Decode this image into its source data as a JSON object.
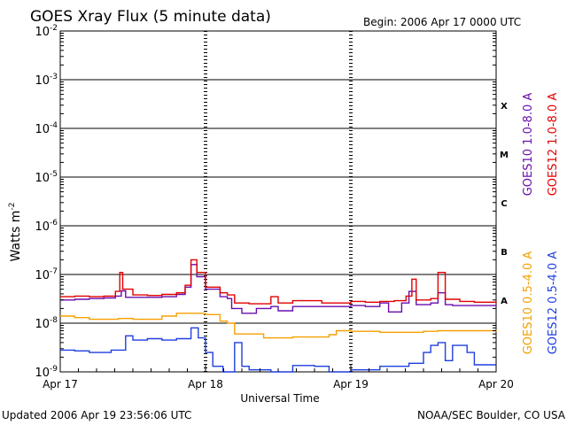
{
  "chart_data": {
    "type": "line",
    "title": "GOES Xray Flux (5 minute data)",
    "begin_label": "Begin:  2006 Apr 17 0000 UTC",
    "ylabel": "Watts m",
    "ylabel_sup": "-2",
    "xlabel": "Universal Time",
    "y_scale": "log",
    "ylim": [
      1e-09,
      0.01
    ],
    "y_ticks": [
      {
        "base": "10",
        "exp": "-2",
        "value": 0.01
      },
      {
        "base": "10",
        "exp": "-3",
        "value": 0.001
      },
      {
        "base": "10",
        "exp": "-4",
        "value": 0.0001
      },
      {
        "base": "10",
        "exp": "-5",
        "value": 1e-05
      },
      {
        "base": "10",
        "exp": "-6",
        "value": 1e-06
      },
      {
        "base": "10",
        "exp": "-7",
        "value": 1e-07
      },
      {
        "base": "10",
        "exp": "-8",
        "value": 1e-08
      },
      {
        "base": "10",
        "exp": "-9",
        "value": 1e-09
      }
    ],
    "x_unit": "days from 2006 Apr 17 0000 UTC",
    "xlim": [
      0,
      3
    ],
    "x_ticks": [
      {
        "label": "Apr 17",
        "value": 0
      },
      {
        "label": "Apr 18",
        "value": 1
      },
      {
        "label": "Apr 19",
        "value": 2
      },
      {
        "label": "Apr 20",
        "value": 3
      }
    ],
    "flare_classes": [
      {
        "label": "X",
        "value": 0.0003
      },
      {
        "label": "M",
        "value": 3e-05
      },
      {
        "label": "C",
        "value": 3e-06
      },
      {
        "label": "B",
        "value": 3e-07
      },
      {
        "label": "A",
        "value": 3e-08
      }
    ],
    "grid_lines_y": [
      0.001,
      0.0001,
      1e-05,
      1e-06,
      1e-07,
      1e-08
    ],
    "series": [
      {
        "name": "GOES10 1.0-8.0 A",
        "color": "#6a0dad",
        "group": "long",
        "points": [
          [
            0,
            3e-08
          ],
          [
            0.1,
            3.1e-08
          ],
          [
            0.2,
            3.2e-08
          ],
          [
            0.3,
            3.3e-08
          ],
          [
            0.38,
            3.6e-08
          ],
          [
            0.42,
            4.6e-08
          ],
          [
            0.45,
            3.4e-08
          ],
          [
            0.55,
            3.4e-08
          ],
          [
            0.7,
            3.5e-08
          ],
          [
            0.8,
            3.9e-08
          ],
          [
            0.86,
            5.5e-08
          ],
          [
            0.9,
            1.6e-07
          ],
          [
            0.94,
            9e-08
          ],
          [
            1.0,
            5e-08
          ],
          [
            1.1,
            3.5e-08
          ],
          [
            1.15,
            3.2e-08
          ],
          [
            1.18,
            2e-08
          ],
          [
            1.25,
            1.6e-08
          ],
          [
            1.35,
            2e-08
          ],
          [
            1.45,
            2.2e-08
          ],
          [
            1.5,
            1.8e-08
          ],
          [
            1.6,
            2.2e-08
          ],
          [
            1.8,
            2.2e-08
          ],
          [
            2.0,
            2.3e-08
          ],
          [
            2.1,
            2.2e-08
          ],
          [
            2.2,
            2.6e-08
          ],
          [
            2.26,
            1.7e-08
          ],
          [
            2.35,
            2.6e-08
          ],
          [
            2.4,
            4.5e-08
          ],
          [
            2.45,
            2.4e-08
          ],
          [
            2.55,
            2.6e-08
          ],
          [
            2.6,
            4.2e-08
          ],
          [
            2.65,
            2.4e-08
          ],
          [
            2.7,
            2.3e-08
          ],
          [
            2.8,
            2.3e-08
          ],
          [
            3.0,
            2.4e-08
          ]
        ]
      },
      {
        "name": "GOES12 1.0-8.0 A",
        "color": "#e00000",
        "group": "long",
        "points": [
          [
            0,
            3.5e-08
          ],
          [
            0.1,
            3.6e-08
          ],
          [
            0.2,
            3.5e-08
          ],
          [
            0.3,
            3.6e-08
          ],
          [
            0.38,
            4.5e-08
          ],
          [
            0.41,
            1.1e-07
          ],
          [
            0.43,
            5e-08
          ],
          [
            0.5,
            3.8e-08
          ],
          [
            0.6,
            3.7e-08
          ],
          [
            0.7,
            3.9e-08
          ],
          [
            0.8,
            4.2e-08
          ],
          [
            0.86,
            6e-08
          ],
          [
            0.9,
            2e-07
          ],
          [
            0.94,
            1.1e-07
          ],
          [
            1.0,
            5.5e-08
          ],
          [
            1.1,
            4.2e-08
          ],
          [
            1.15,
            3.8e-08
          ],
          [
            1.2,
            2.6e-08
          ],
          [
            1.3,
            2.5e-08
          ],
          [
            1.45,
            3.5e-08
          ],
          [
            1.5,
            2.6e-08
          ],
          [
            1.6,
            2.9e-08
          ],
          [
            1.8,
            2.6e-08
          ],
          [
            2.0,
            2.8e-08
          ],
          [
            2.1,
            2.7e-08
          ],
          [
            2.2,
            2.8e-08
          ],
          [
            2.3,
            2.9e-08
          ],
          [
            2.38,
            3.6e-08
          ],
          [
            2.42,
            8e-08
          ],
          [
            2.45,
            3e-08
          ],
          [
            2.55,
            3.2e-08
          ],
          [
            2.6,
            1.1e-07
          ],
          [
            2.65,
            3.1e-08
          ],
          [
            2.75,
            2.8e-08
          ],
          [
            2.85,
            2.7e-08
          ],
          [
            3.0,
            2.8e-08
          ]
        ]
      },
      {
        "name": "GOES10 0.5-4.0 A",
        "color": "#f5a000",
        "group": "short",
        "points": [
          [
            0,
            1.4e-08
          ],
          [
            0.1,
            1.3e-08
          ],
          [
            0.2,
            1.2e-08
          ],
          [
            0.3,
            1.2e-08
          ],
          [
            0.4,
            1.25e-08
          ],
          [
            0.5,
            1.2e-08
          ],
          [
            0.6,
            1.2e-08
          ],
          [
            0.7,
            1.4e-08
          ],
          [
            0.8,
            1.6e-08
          ],
          [
            0.9,
            1.6e-08
          ],
          [
            1.0,
            1.5e-08
          ],
          [
            1.1,
            1.1e-08
          ],
          [
            1.15,
            1e-08
          ],
          [
            1.2,
            6e-09
          ],
          [
            1.4,
            5e-09
          ],
          [
            1.5,
            5e-09
          ],
          [
            1.6,
            5.2e-09
          ],
          [
            1.8,
            5.2e-09
          ],
          [
            1.85,
            5.8e-09
          ],
          [
            1.9,
            7e-09
          ],
          [
            2.0,
            6.8e-09
          ],
          [
            2.2,
            6.5e-09
          ],
          [
            2.3,
            6.5e-09
          ],
          [
            2.5,
            6.8e-09
          ],
          [
            2.6,
            7e-09
          ],
          [
            2.8,
            7e-09
          ],
          [
            3.0,
            6.7e-09
          ]
        ]
      },
      {
        "name": "GOES12 0.5-4.0 A",
        "color": "#1f3fdf",
        "group": "short",
        "points": [
          [
            0,
            2.8e-09
          ],
          [
            0.1,
            2.7e-09
          ],
          [
            0.2,
            2.5e-09
          ],
          [
            0.35,
            2.8e-09
          ],
          [
            0.45,
            5.5e-09
          ],
          [
            0.5,
            4.5e-09
          ],
          [
            0.6,
            4.8e-09
          ],
          [
            0.7,
            4.5e-09
          ],
          [
            0.8,
            4.8e-09
          ],
          [
            0.9,
            8e-09
          ],
          [
            0.95,
            5e-09
          ],
          [
            1.0,
            2.5e-09
          ],
          [
            1.05,
            1.3e-09
          ],
          [
            1.12,
            1e-09
          ],
          [
            1.2,
            4e-09
          ],
          [
            1.25,
            1.3e-09
          ],
          [
            1.3,
            1.1e-09
          ],
          [
            1.45,
            1e-09
          ],
          [
            1.6,
            1.35e-09
          ],
          [
            1.75,
            1.3e-09
          ],
          [
            1.85,
            1e-09
          ],
          [
            2.0,
            1.1e-09
          ],
          [
            2.2,
            1.3e-09
          ],
          [
            2.4,
            1.5e-09
          ],
          [
            2.5,
            2.5e-09
          ],
          [
            2.55,
            3.5e-09
          ],
          [
            2.6,
            4e-09
          ],
          [
            2.65,
            1.7e-09
          ],
          [
            2.7,
            3.5e-09
          ],
          [
            2.8,
            2.5e-09
          ],
          [
            2.85,
            1.4e-09
          ],
          [
            3.0,
            1.4e-09
          ]
        ]
      }
    ]
  },
  "footer": {
    "updated": "Updated 2006 Apr 19 23:56:06 UTC",
    "credit": "NOAA/SEC Boulder, CO USA"
  }
}
